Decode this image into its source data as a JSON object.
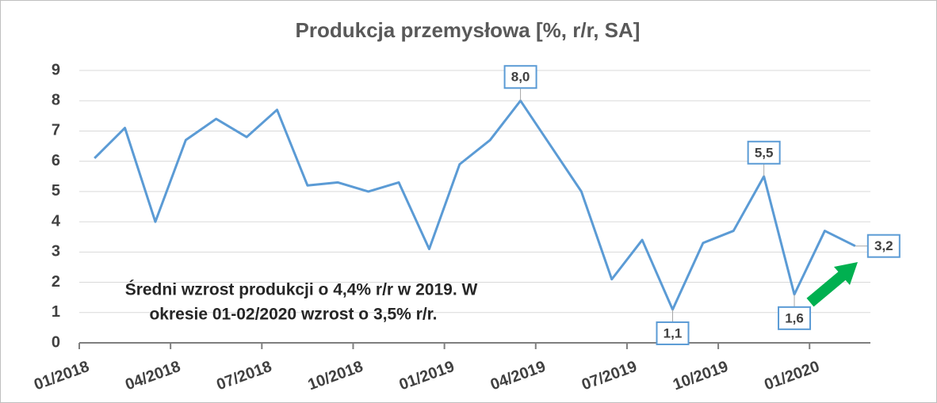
{
  "chart_data": {
    "type": "line",
    "title": "Produkcja przemysłowa [%, r/r, SA]",
    "categories": [
      "01/2018",
      null,
      null,
      "04/2018",
      null,
      null,
      "07/2018",
      null,
      null,
      "10/2018",
      null,
      null,
      "01/2019",
      null,
      null,
      "04/2019",
      null,
      null,
      "07/2019",
      null,
      null,
      "10/2019",
      null,
      null,
      "01/2020",
      null
    ],
    "values": [
      6.1,
      7.1,
      4.0,
      6.7,
      7.4,
      6.8,
      7.7,
      5.2,
      5.3,
      5.0,
      5.3,
      3.1,
      5.9,
      6.7,
      8.0,
      6.5,
      5.0,
      2.1,
      3.4,
      1.1,
      3.3,
      3.7,
      5.5,
      1.6,
      3.7,
      3.2
    ],
    "value_labels": [
      null,
      null,
      null,
      null,
      null,
      null,
      null,
      null,
      null,
      null,
      null,
      null,
      null,
      null,
      "8,0",
      null,
      null,
      null,
      null,
      "1,1",
      null,
      null,
      "5,5",
      "1,6",
      null,
      "3,2"
    ],
    "color": "#5b9bd5",
    "ylim": [
      0,
      9
    ],
    "yticks": [
      0,
      1,
      2,
      3,
      4,
      5,
      6,
      7,
      8,
      9
    ],
    "grid": true,
    "annotation": [
      "Średni wzrost produkcji o 4,4% r/r w 2019. W",
      "okresie 01-02/2020 wzrost o 3,5% r/r."
    ]
  }
}
